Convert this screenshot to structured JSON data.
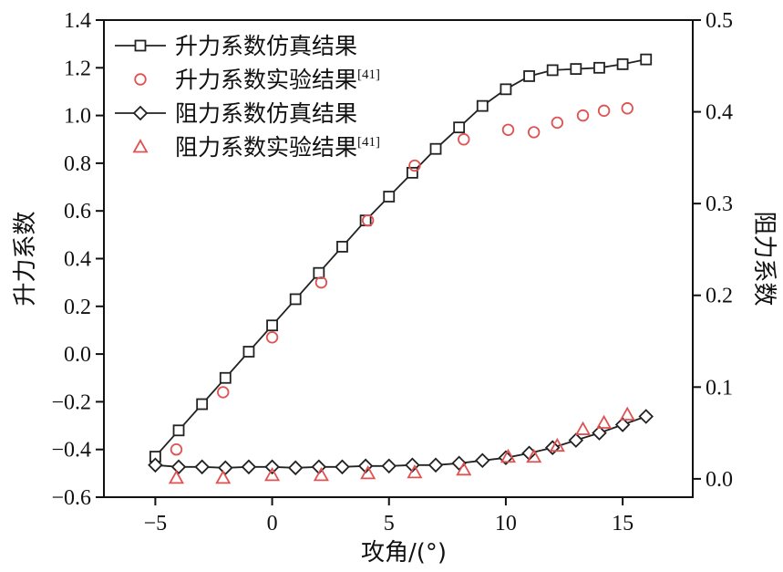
{
  "chart_data": {
    "type": "line",
    "x": {
      "label": "攻角/(°)",
      "range": [
        -7.2,
        18
      ],
      "ticks": [
        -5,
        0,
        5,
        10,
        15
      ]
    },
    "y_left": {
      "label": "升力系数",
      "range": [
        -0.6,
        1.4
      ],
      "ticks": [
        "−0.6",
        "−0.4",
        "−0.2",
        "0.0",
        "0.2",
        "0.4",
        "0.6",
        "0.8",
        "1.0",
        "1.2",
        "1.4"
      ],
      "tick_values": [
        -0.6,
        -0.4,
        -0.2,
        0.0,
        0.2,
        0.4,
        0.6,
        0.8,
        1.0,
        1.2,
        1.4
      ]
    },
    "y_right": {
      "label": "阻力系数",
      "range": [
        -0.02,
        0.5
      ],
      "ticks": [
        "0.0",
        "0.1",
        "0.2",
        "0.3",
        "0.4",
        "0.5"
      ],
      "tick_values": [
        0.0,
        0.1,
        0.2,
        0.3,
        0.4,
        0.5
      ]
    },
    "series": [
      {
        "name": "升力系数仿真结果",
        "axis": "left",
        "style": "line-square",
        "color": "#222222",
        "points": [
          [
            -5,
            -0.43
          ],
          [
            -4,
            -0.32
          ],
          [
            -3,
            -0.21
          ],
          [
            -2,
            -0.1
          ],
          [
            -1,
            0.01
          ],
          [
            0,
            0.12
          ],
          [
            1,
            0.23
          ],
          [
            2,
            0.34
          ],
          [
            3,
            0.45
          ],
          [
            4,
            0.56
          ],
          [
            5,
            0.66
          ],
          [
            6,
            0.76
          ],
          [
            7,
            0.86
          ],
          [
            8,
            0.95
          ],
          [
            9,
            1.04
          ],
          [
            10,
            1.11
          ],
          [
            11,
            1.165
          ],
          [
            12,
            1.19
          ],
          [
            13,
            1.195
          ],
          [
            14,
            1.2
          ],
          [
            15,
            1.215
          ],
          [
            16,
            1.235
          ]
        ]
      },
      {
        "name": "升力系数实验结果",
        "name_sup": "[41]",
        "axis": "left",
        "style": "circle",
        "color": "#e05252",
        "points": [
          [
            -4.1,
            -0.4
          ],
          [
            -2.1,
            -0.16
          ],
          [
            0,
            0.07
          ],
          [
            2.1,
            0.3
          ],
          [
            4.1,
            0.56
          ],
          [
            6.1,
            0.79
          ],
          [
            8.2,
            0.9
          ],
          [
            10.1,
            0.94
          ],
          [
            11.2,
            0.93
          ],
          [
            12.2,
            0.97
          ],
          [
            13.3,
            1.0
          ],
          [
            14.2,
            1.02
          ],
          [
            15.2,
            1.03
          ]
        ]
      },
      {
        "name": "阻力系数仿真结果",
        "axis": "right",
        "style": "line-diamond",
        "color": "#222222",
        "points": [
          [
            -5,
            0.015
          ],
          [
            -4,
            0.013
          ],
          [
            -3,
            0.013
          ],
          [
            -2,
            0.012
          ],
          [
            -1,
            0.013
          ],
          [
            0,
            0.013
          ],
          [
            1,
            0.012
          ],
          [
            2,
            0.013
          ],
          [
            3,
            0.013
          ],
          [
            4,
            0.014
          ],
          [
            5,
            0.014
          ],
          [
            6,
            0.015
          ],
          [
            7,
            0.015
          ],
          [
            8,
            0.017
          ],
          [
            9,
            0.02
          ],
          [
            10,
            0.023
          ],
          [
            11,
            0.028
          ],
          [
            12,
            0.034
          ],
          [
            13,
            0.042
          ],
          [
            14,
            0.05
          ],
          [
            15,
            0.059
          ],
          [
            16,
            0.068
          ]
        ]
      },
      {
        "name": "阻力系数实验结果",
        "name_sup": "[41]",
        "axis": "right",
        "style": "triangle",
        "color": "#e05252",
        "points": [
          [
            -4.1,
            0.001
          ],
          [
            -2.1,
            0.001
          ],
          [
            0,
            0.004
          ],
          [
            2.1,
            0.004
          ],
          [
            4.1,
            0.006
          ],
          [
            6.1,
            0.007
          ],
          [
            8.2,
            0.01
          ],
          [
            10.1,
            0.024
          ],
          [
            11.2,
            0.024
          ],
          [
            12.2,
            0.036
          ],
          [
            13.3,
            0.054
          ],
          [
            14.2,
            0.061
          ],
          [
            15.2,
            0.07
          ]
        ]
      }
    ],
    "legend": {
      "position": "top-left"
    }
  }
}
